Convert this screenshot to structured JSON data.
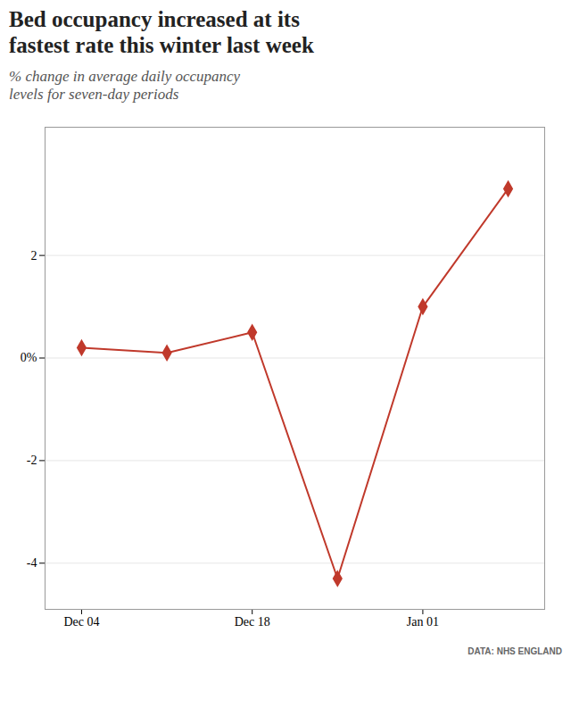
{
  "chart_data": {
    "type": "line",
    "title": "Bed occupancy increased at its\nfastest rate this winter last week",
    "subtitle": "% change in average daily occupancy\nlevels for seven-day periods",
    "caption": "DATA: NHS ENGLAND",
    "x": [
      0,
      7,
      14,
      21,
      28,
      35
    ],
    "values": [
      0.2,
      0.1,
      0.5,
      -4.3,
      1.0,
      3.3
    ],
    "color": "#c0392b",
    "marker": "diamond",
    "xlim": [
      -3,
      38
    ],
    "xticks": [
      {
        "value": 0,
        "label": "Dec 04"
      },
      {
        "value": 14,
        "label": "Dec 18"
      },
      {
        "value": 28,
        "label": "Jan 01"
      }
    ],
    "ylim": [
      -4.9,
      4.5
    ],
    "yticks": [
      -4,
      -2,
      {
        "value": 0,
        "label": "0%"
      },
      2
    ],
    "grid": true
  }
}
